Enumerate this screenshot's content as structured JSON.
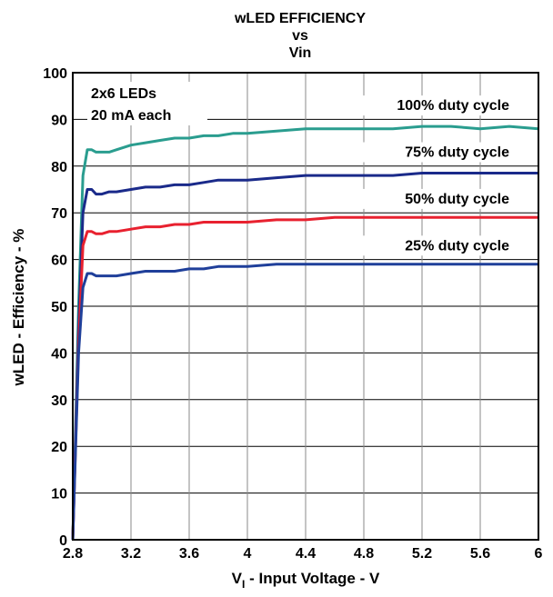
{
  "chart_data": {
    "type": "line",
    "title_lines": [
      "wLED EFFICIENCY",
      "vs",
      "Vin"
    ],
    "xlabel_main": "V",
    "xlabel_sub": "I",
    "xlabel_rest": " - Input Voltage - V",
    "ylabel": "wLED - Efficiency - %",
    "xlim": [
      2.8,
      6.0
    ],
    "ylim": [
      0,
      100
    ],
    "x_ticks": [
      "2.8",
      "3.2",
      "3.6",
      "4",
      "4.4",
      "4.8",
      "5.2",
      "5.6",
      "6"
    ],
    "y_ticks": [
      "0",
      "10",
      "20",
      "30",
      "40",
      "50",
      "60",
      "70",
      "80",
      "90",
      "100"
    ],
    "grid": true,
    "legend": null,
    "annotations": {
      "box_line1": "2x6 LEDs",
      "box_line2": "20 mA each"
    },
    "series": [
      {
        "name": "100% duty cycle",
        "color": "#2a9d8f",
        "x": [
          2.8,
          2.84,
          2.87,
          2.9,
          2.93,
          2.96,
          3.0,
          3.05,
          3.1,
          3.2,
          3.3,
          3.4,
          3.5,
          3.6,
          3.7,
          3.8,
          3.9,
          4.0,
          4.2,
          4.4,
          4.6,
          4.8,
          5.0,
          5.2,
          5.4,
          5.6,
          5.8,
          6.0
        ],
        "y": [
          0,
          50,
          78,
          83.5,
          83.5,
          83,
          83,
          83,
          83.5,
          84.5,
          85,
          85.5,
          86,
          86,
          86.5,
          86.5,
          87,
          87,
          87.5,
          88,
          88,
          88,
          88,
          88.5,
          88.5,
          88,
          88.5,
          88
        ]
      },
      {
        "name": "75% duty cycle",
        "color": "#1a2a8a",
        "x": [
          2.8,
          2.84,
          2.87,
          2.9,
          2.93,
          2.96,
          3.0,
          3.05,
          3.1,
          3.2,
          3.3,
          3.4,
          3.5,
          3.6,
          3.7,
          3.8,
          3.9,
          4.0,
          4.2,
          4.4,
          4.6,
          4.8,
          5.0,
          5.2,
          5.4,
          5.6,
          5.8,
          6.0
        ],
        "y": [
          0,
          45,
          70,
          75,
          75,
          74,
          74,
          74.5,
          74.5,
          75,
          75.5,
          75.5,
          76,
          76,
          76.5,
          77,
          77,
          77,
          77.5,
          78,
          78,
          78,
          78,
          78.5,
          78.5,
          78.5,
          78.5,
          78.5
        ]
      },
      {
        "name": "50% duty cycle",
        "color": "#e8212f",
        "x": [
          2.8,
          2.84,
          2.87,
          2.9,
          2.93,
          2.96,
          3.0,
          3.05,
          3.1,
          3.2,
          3.3,
          3.4,
          3.5,
          3.6,
          3.7,
          3.8,
          3.9,
          4.0,
          4.2,
          4.4,
          4.6,
          4.8,
          5.0,
          5.2,
          5.4,
          5.6,
          5.8,
          6.0
        ],
        "y": [
          0,
          42,
          63,
          66,
          66,
          65.5,
          65.5,
          66,
          66,
          66.5,
          67,
          67,
          67.5,
          67.5,
          68,
          68,
          68,
          68,
          68.5,
          68.5,
          69,
          69,
          69,
          69,
          69,
          69,
          69,
          69
        ]
      },
      {
        "name": "25% duty cycle",
        "color": "#1f3f9a",
        "x": [
          2.8,
          2.84,
          2.87,
          2.9,
          2.93,
          2.96,
          3.0,
          3.05,
          3.1,
          3.2,
          3.3,
          3.4,
          3.5,
          3.6,
          3.7,
          3.8,
          3.9,
          4.0,
          4.2,
          4.4,
          4.6,
          4.8,
          5.0,
          5.2,
          5.4,
          5.6,
          5.8,
          6.0
        ],
        "y": [
          0,
          40,
          54,
          57,
          57,
          56.5,
          56.5,
          56.5,
          56.5,
          57,
          57.5,
          57.5,
          57.5,
          58,
          58,
          58.5,
          58.5,
          58.5,
          59,
          59,
          59,
          59,
          59,
          59,
          59,
          59,
          59,
          59
        ]
      }
    ],
    "series_labels": [
      {
        "text": "100% duty cycle",
        "x": 5.8,
        "y": 92
      },
      {
        "text": "75% duty cycle",
        "x": 5.8,
        "y": 82
      },
      {
        "text": "50% duty cycle",
        "x": 5.8,
        "y": 72
      },
      {
        "text": "25% duty cycle",
        "x": 5.8,
        "y": 62
      }
    ]
  }
}
